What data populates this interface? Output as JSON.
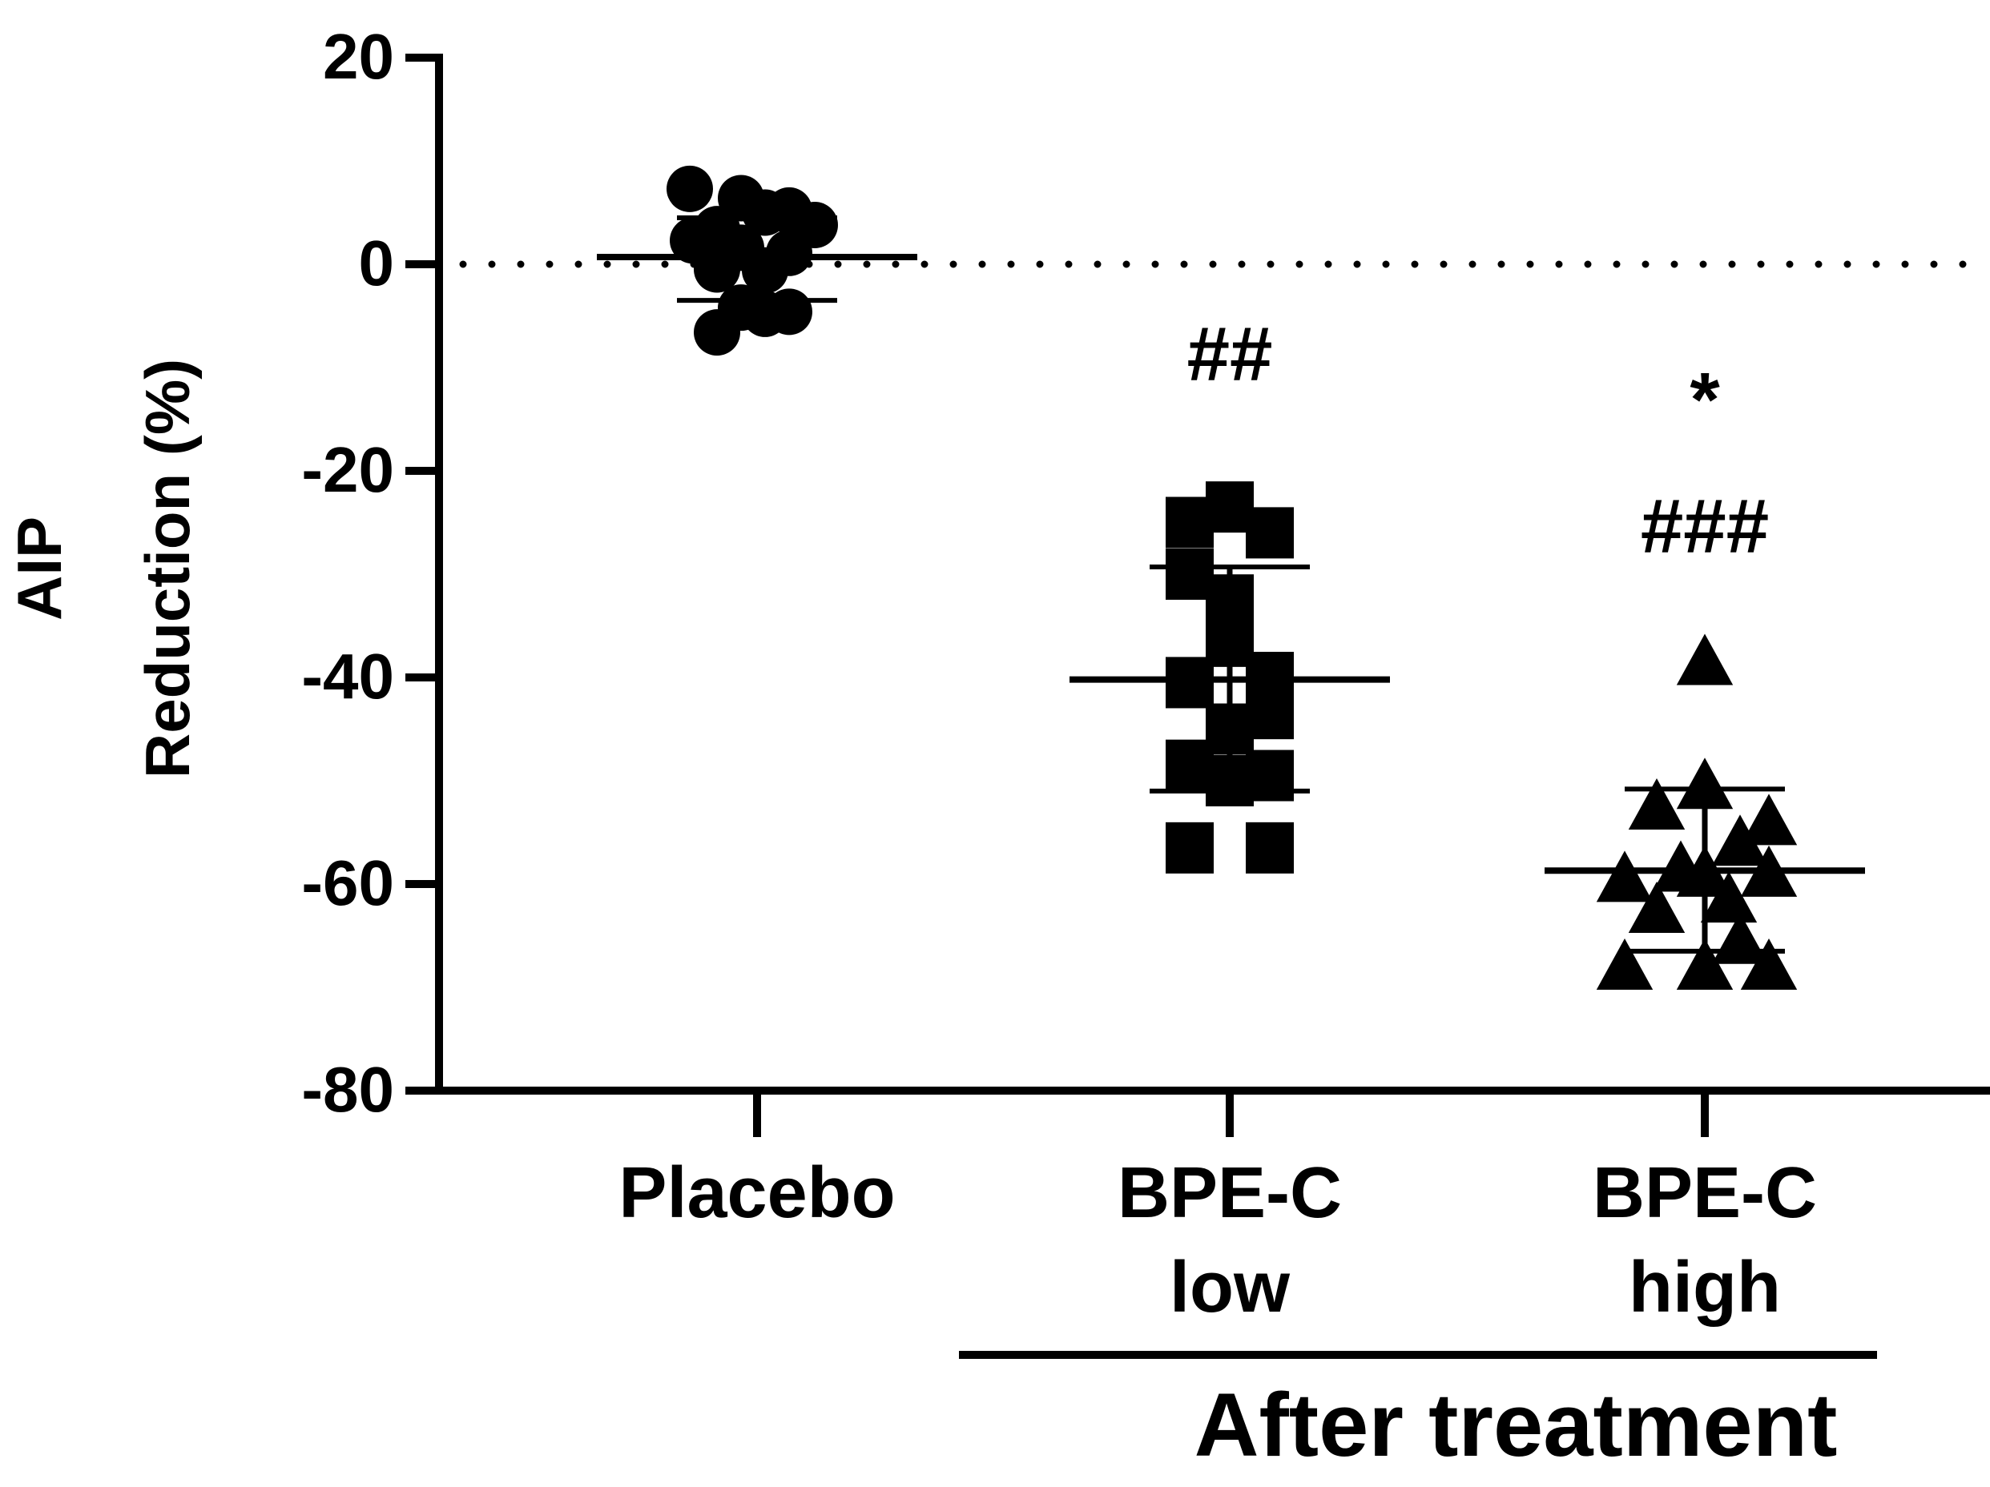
{
  "chart_data": {
    "type": "scatter",
    "ylabel_line1": "AIP",
    "ylabel_line2": "Reduction (%)",
    "ylim": [
      -80,
      20
    ],
    "yticks": [
      20,
      0,
      -20,
      -40,
      -60,
      -80
    ],
    "ytick_labels": [
      "20",
      "0",
      "-20",
      "-40",
      "-60",
      "-80"
    ],
    "reference_line": {
      "y": 0,
      "style": "dotted"
    },
    "group_bracket_label": "After treatment",
    "grid": false,
    "legend": "none",
    "marker_color": "#000000",
    "groups": [
      {
        "label_lines": [
          "Placebo"
        ],
        "marker": "circle",
        "mean": 0.7,
        "sd_upper": 4.5,
        "sd_lower": -3.5,
        "points": [
          {
            "dx": -0.42,
            "y": 7.3
          },
          {
            "dx": -0.4,
            "y": 2.3
          },
          {
            "dx": -0.25,
            "y": 3.4
          },
          {
            "dx": -0.25,
            "y": -0.5
          },
          {
            "dx": -0.25,
            "y": -6.6
          },
          {
            "dx": -0.1,
            "y": 6.4
          },
          {
            "dx": -0.1,
            "y": 1.6
          },
          {
            "dx": -0.1,
            "y": -4.2
          },
          {
            "dx": 0.05,
            "y": 5.0
          },
          {
            "dx": 0.05,
            "y": -0.6
          },
          {
            "dx": 0.05,
            "y": -4.8
          },
          {
            "dx": 0.2,
            "y": 5.2
          },
          {
            "dx": 0.2,
            "y": 1.1
          },
          {
            "dx": 0.2,
            "y": -4.6
          },
          {
            "dx": 0.36,
            "y": 3.8
          }
        ]
      },
      {
        "label_lines": [
          "BPE-C",
          "low"
        ],
        "marker": "square",
        "mean": -40.2,
        "sd_upper": -29.3,
        "sd_lower": -51.0,
        "annotation": "##",
        "points": [
          {
            "dx": -0.25,
            "y": -25.0
          },
          {
            "dx": -0.25,
            "y": -30.0
          },
          {
            "dx": -0.25,
            "y": -40.5
          },
          {
            "dx": -0.25,
            "y": -48.5
          },
          {
            "dx": -0.25,
            "y": -56.5
          },
          {
            "dx": 0.0,
            "y": -23.5
          },
          {
            "dx": 0.0,
            "y": -32.5
          },
          {
            "dx": 0.0,
            "y": -36.5
          },
          {
            "dx": 0.0,
            "y": -45.0
          },
          {
            "dx": 0.0,
            "y": -50.0
          },
          {
            "dx": 0.25,
            "y": -26.0
          },
          {
            "dx": 0.25,
            "y": -40.0
          },
          {
            "dx": 0.25,
            "y": -43.5
          },
          {
            "dx": 0.25,
            "y": -49.5
          },
          {
            "dx": 0.25,
            "y": -56.5
          }
        ]
      },
      {
        "label_lines": [
          "BPE-C",
          "high"
        ],
        "marker": "triangle",
        "mean": -58.7,
        "sd_upper": -50.8,
        "sd_lower": -66.5,
        "annotations": [
          "*",
          "###"
        ],
        "points": [
          {
            "dx": 0.0,
            "y": -38.5
          },
          {
            "dx": -0.5,
            "y": -59.5
          },
          {
            "dx": -0.5,
            "y": -68.0
          },
          {
            "dx": -0.3,
            "y": -52.5
          },
          {
            "dx": -0.3,
            "y": -62.5
          },
          {
            "dx": -0.15,
            "y": -58.5
          },
          {
            "dx": 0.0,
            "y": -50.5
          },
          {
            "dx": 0.0,
            "y": -59.0
          },
          {
            "dx": 0.0,
            "y": -68.0
          },
          {
            "dx": 0.15,
            "y": -61.5
          },
          {
            "dx": 0.22,
            "y": -56.0
          },
          {
            "dx": 0.22,
            "y": -65.5
          },
          {
            "dx": 0.4,
            "y": -54.0
          },
          {
            "dx": 0.4,
            "y": -59.0
          },
          {
            "dx": 0.4,
            "y": -68.0
          }
        ]
      }
    ]
  }
}
